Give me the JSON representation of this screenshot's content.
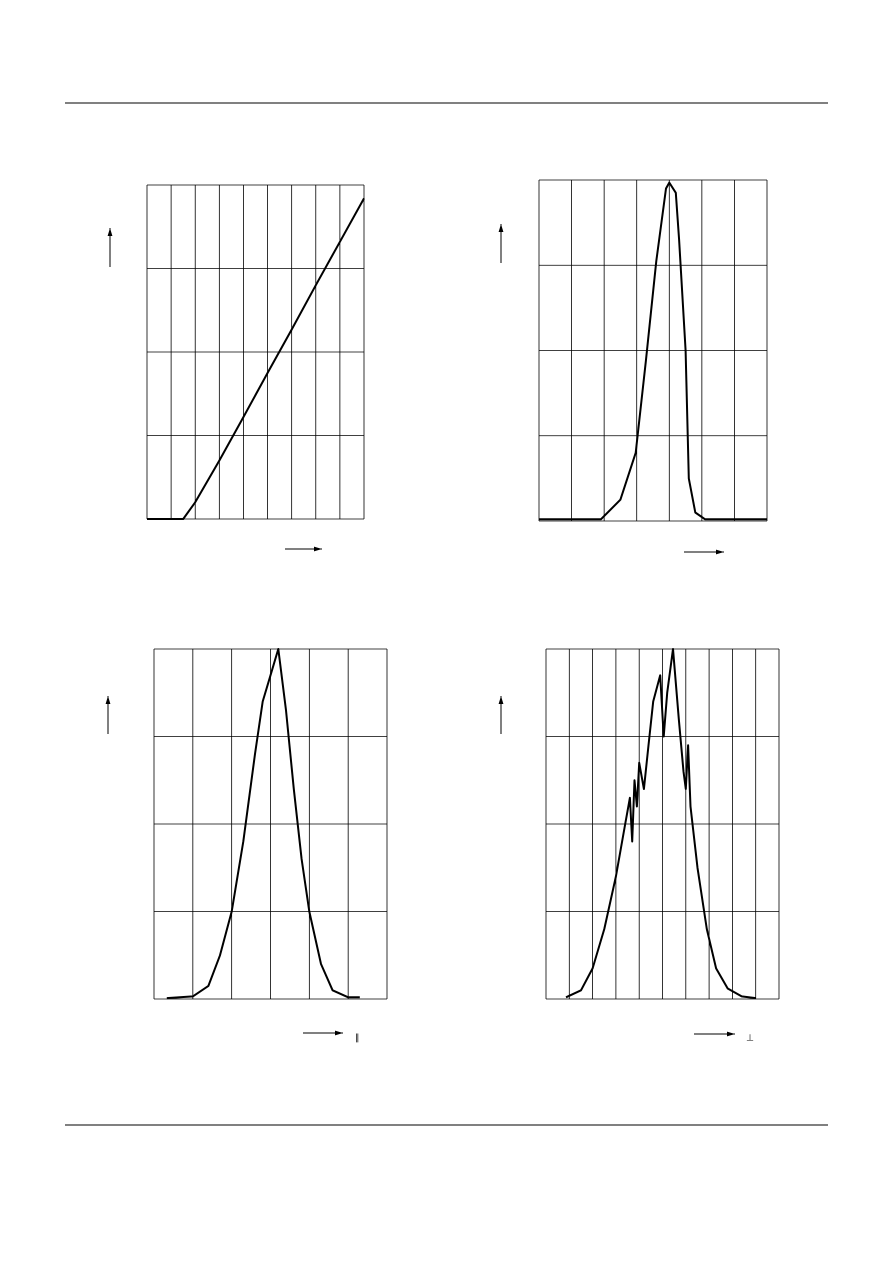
{
  "chart_data": [
    {
      "type": "line",
      "color": "#000000",
      "grid": true,
      "x": [
        0,
        1.5,
        2,
        3,
        4,
        5,
        6,
        7,
        8,
        9
      ],
      "values": [
        0,
        0,
        0.2,
        0.7,
        1.22,
        1.75,
        2.27,
        2.8,
        3.32,
        3.84
      ],
      "xlim": [
        0,
        9
      ],
      "ylim": [
        0,
        4
      ],
      "xticks": [
        0,
        1,
        2,
        3,
        4,
        5,
        6,
        7,
        8,
        9
      ],
      "yticks": [
        0,
        1,
        2,
        3,
        4
      ]
    },
    {
      "type": "line",
      "color": "#000000",
      "grid": true,
      "x": [
        0,
        1.9,
        2.5,
        2.97,
        3.28,
        3.6,
        3.9,
        4,
        4.2,
        4.3,
        4.5,
        4.6,
        4.8,
        5.1,
        7
      ],
      "values": [
        0.02,
        0.02,
        0.25,
        0.8,
        1.87,
        3.05,
        3.9,
        3.97,
        3.85,
        3.3,
        2.0,
        0.5,
        0.1,
        0.02,
        0.02
      ],
      "xlim": [
        0,
        7
      ],
      "ylim": [
        0,
        4
      ],
      "xticks": [
        0,
        1,
        2,
        3,
        4,
        5,
        6,
        7
      ],
      "yticks": [
        0,
        1,
        2,
        3,
        4
      ]
    },
    {
      "type": "line",
      "color": "#000000",
      "grid": true,
      "x_label": "∥",
      "x": [
        0.33,
        1.0,
        1.4,
        1.7,
        2.0,
        2.3,
        2.6,
        2.8,
        3.0,
        3.2,
        3.4,
        3.6,
        3.8,
        4.0,
        4.3,
        4.6,
        5.0,
        5.3
      ],
      "values": [
        0.01,
        0.03,
        0.15,
        0.5,
        1.0,
        1.8,
        2.8,
        3.4,
        3.7,
        4.0,
        3.3,
        2.4,
        1.6,
        1.0,
        0.4,
        0.1,
        0.02,
        0.02
      ],
      "xlim": [
        0,
        6
      ],
      "ylim": [
        0,
        4
      ],
      "xticks": [
        0,
        1,
        2,
        3,
        4,
        5,
        6
      ],
      "yticks": [
        0,
        1,
        2,
        3,
        4
      ]
    },
    {
      "type": "line",
      "color": "#000000",
      "grid": true,
      "x_label": "⊥",
      "x": [
        0.86,
        1.5,
        2,
        2.5,
        3,
        3.4,
        3.6,
        3.7,
        3.8,
        3.9,
        4.0,
        4.2,
        4.4,
        4.6,
        4.9,
        5.05,
        5.2,
        5.45,
        5.7,
        5.9,
        6.0,
        6.1,
        6.2,
        6.5,
        6.9,
        7.3,
        7.8,
        8.4,
        9
      ],
      "values": [
        0.02,
        0.1,
        0.35,
        0.8,
        1.4,
        2.0,
        2.3,
        1.8,
        2.5,
        2.2,
        2.7,
        2.4,
        2.9,
        3.4,
        3.7,
        3.0,
        3.5,
        4.0,
        3.2,
        2.6,
        2.4,
        2.9,
        2.2,
        1.5,
        0.8,
        0.35,
        0.12,
        0.03,
        0.01
      ],
      "xlim": [
        0,
        10
      ],
      "ylim": [
        0,
        4
      ],
      "xticks": [
        0,
        1,
        2,
        3,
        4,
        5,
        6,
        7,
        8,
        9,
        10
      ],
      "yticks": [
        0,
        1,
        2,
        3,
        4
      ]
    }
  ]
}
